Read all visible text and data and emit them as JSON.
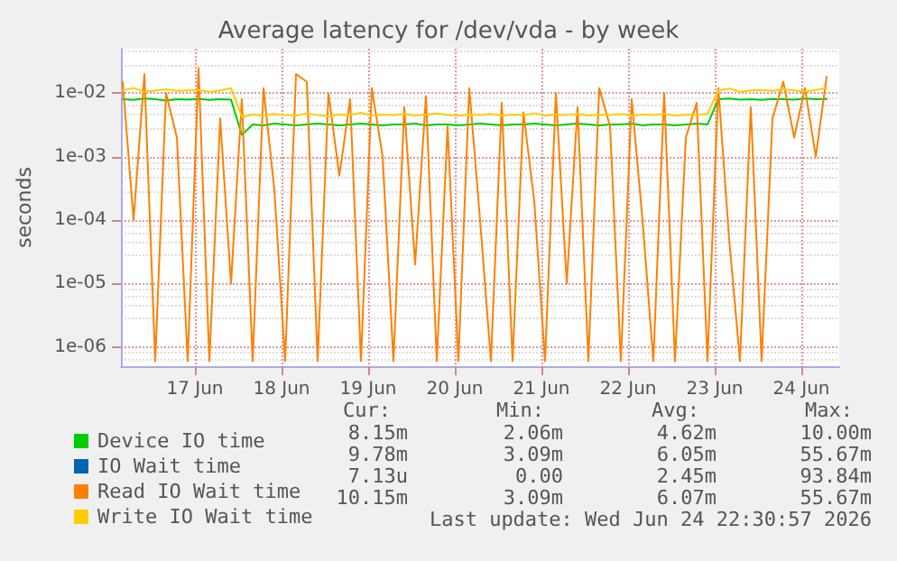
{
  "chart_data": {
    "type": "line",
    "title": "Average latency for /dev/vda - by week",
    "ylabel": "seconds",
    "log": true,
    "grid": true,
    "legend": "bottom",
    "marker": "none",
    "xlim": [
      "2026-06-16T15:30",
      "2026-06-24T22:30"
    ],
    "xticks": [
      {
        "value": "2026-06-17T12:00",
        "label": "17 Jun"
      },
      {
        "value": "2026-06-18T12:00",
        "label": "18 Jun"
      },
      {
        "value": "2026-06-19T12:00",
        "label": "19 Jun"
      },
      {
        "value": "2026-06-20T12:00",
        "label": "20 Jun"
      },
      {
        "value": "2026-06-21T12:00",
        "label": "21 Jun"
      },
      {
        "value": "2026-06-22T12:00",
        "label": "22 Jun"
      },
      {
        "value": "2026-06-23T12:00",
        "label": "23 Jun"
      },
      {
        "value": "2026-06-24T12:00",
        "label": "24 Jun"
      }
    ],
    "ylim": [
      5e-07,
      0.05
    ],
    "yticks": [
      {
        "value": 1e-06,
        "label": "1e-06"
      },
      {
        "value": 1e-05,
        "label": "1e-05"
      },
      {
        "value": 0.0001,
        "label": "1e-04"
      },
      {
        "value": 0.001,
        "label": "1e-03"
      },
      {
        "value": 0.01,
        "label": "1e-02"
      }
    ],
    "x": [
      "2026-06-16T16:00",
      "2026-06-16T19:00",
      "2026-06-16T22:00",
      "2026-06-17T01:00",
      "2026-06-17T04:00",
      "2026-06-17T07:00",
      "2026-06-17T10:00",
      "2026-06-17T13:00",
      "2026-06-17T16:00",
      "2026-06-17T19:00",
      "2026-06-17T22:00",
      "2026-06-18T01:00",
      "2026-06-18T04:00",
      "2026-06-18T07:00",
      "2026-06-18T10:00",
      "2026-06-18T13:00",
      "2026-06-18T16:00",
      "2026-06-18T19:00",
      "2026-06-18T22:00",
      "2026-06-19T01:00",
      "2026-06-19T04:00",
      "2026-06-19T07:00",
      "2026-06-19T10:00",
      "2026-06-19T13:00",
      "2026-06-19T16:00",
      "2026-06-19T19:00",
      "2026-06-19T22:00",
      "2026-06-20T01:00",
      "2026-06-20T04:00",
      "2026-06-20T07:00",
      "2026-06-20T10:00",
      "2026-06-20T13:00",
      "2026-06-20T16:00",
      "2026-06-20T19:00",
      "2026-06-20T22:00",
      "2026-06-21T01:00",
      "2026-06-21T04:00",
      "2026-06-21T07:00",
      "2026-06-21T10:00",
      "2026-06-21T13:00",
      "2026-06-21T16:00",
      "2026-06-21T19:00",
      "2026-06-21T22:00",
      "2026-06-22T01:00",
      "2026-06-22T04:00",
      "2026-06-22T07:00",
      "2026-06-22T10:00",
      "2026-06-22T13:00",
      "2026-06-22T16:00",
      "2026-06-22T19:00",
      "2026-06-22T22:00",
      "2026-06-23T01:00",
      "2026-06-23T04:00",
      "2026-06-23T07:00",
      "2026-06-23T10:00",
      "2026-06-23T13:00",
      "2026-06-23T16:00",
      "2026-06-23T19:00",
      "2026-06-23T22:00",
      "2026-06-24T01:00",
      "2026-06-24T04:00",
      "2026-06-24T07:00",
      "2026-06-24T10:00",
      "2026-06-24T13:00",
      "2026-06-24T16:00",
      "2026-06-24T19:00"
    ],
    "series": [
      {
        "name": "Device IO time",
        "color": "#00cc00",
        "values": [
          0.008,
          0.0078,
          0.0082,
          0.008,
          0.0076,
          0.008,
          0.0079,
          0.0081,
          0.0078,
          0.008,
          0.0079,
          0.0022,
          0.0032,
          0.0031,
          0.0033,
          0.0032,
          0.0031,
          0.0032,
          0.0033,
          0.0032,
          0.0031,
          0.0032,
          0.0033,
          0.0032,
          0.0031,
          0.0032,
          0.0032,
          0.0033,
          0.0031,
          0.0032,
          0.0032,
          0.0031,
          0.0032,
          0.0033,
          0.0032,
          0.0031,
          0.0032,
          0.0032,
          0.0033,
          0.0032,
          0.0031,
          0.0032,
          0.0033,
          0.0032,
          0.0031,
          0.0032,
          0.0032,
          0.0033,
          0.0031,
          0.0032,
          0.0032,
          0.0031,
          0.0032,
          0.0033,
          0.0032,
          0.008,
          0.0082,
          0.0079,
          0.008,
          0.0078,
          0.0081,
          0.008,
          0.0079,
          0.0082,
          0.008,
          0.0081
        ]
      },
      {
        "name": "IO Wait time",
        "color": "#0066b3",
        "values": [
          null,
          null,
          null,
          null,
          null,
          null,
          null,
          null,
          null,
          null,
          null,
          null,
          null,
          null,
          null,
          null,
          null,
          null,
          null,
          null,
          null,
          null,
          null,
          null,
          null,
          null,
          null,
          null,
          null,
          null,
          null,
          null,
          null,
          null,
          null,
          null,
          null,
          null,
          null,
          null,
          null,
          null,
          null,
          null,
          null,
          null,
          null,
          null,
          null,
          null,
          null,
          null,
          null,
          null,
          null,
          null,
          null,
          null,
          null,
          null,
          null,
          null,
          null,
          null,
          null,
          null
        ]
      },
      {
        "name": "Read IO Wait time",
        "color": "#ff8000",
        "values": [
          0.015,
          0.0001,
          0.02,
          6e-07,
          0.01,
          0.002,
          6e-07,
          0.025,
          6e-07,
          0.004,
          1e-05,
          0.008,
          6e-07,
          0.012,
          0.0003,
          6e-07,
          0.02,
          0.015,
          6e-07,
          0.01,
          0.0005,
          0.008,
          6e-07,
          0.012,
          0.001,
          6e-07,
          0.006,
          2e-05,
          0.009,
          6e-07,
          0.003,
          6e-07,
          0.012,
          0.0001,
          6e-07,
          0.007,
          6e-07,
          0.005,
          0.0002,
          6e-07,
          0.01,
          1e-05,
          0.006,
          6e-07,
          0.012,
          0.003,
          6e-07,
          0.008,
          0.0001,
          6e-07,
          0.01,
          6e-07,
          0.002,
          0.007,
          6e-07,
          0.012,
          5e-05,
          6e-07,
          0.006,
          6e-07,
          0.004,
          0.015,
          0.002,
          0.012,
          0.001,
          0.018
        ]
      },
      {
        "name": "Write IO Wait time",
        "color": "#ffcc00",
        "values": [
          0.011,
          0.012,
          0.0105,
          0.011,
          0.0115,
          0.0108,
          0.011,
          0.0112,
          0.0105,
          0.011,
          0.012,
          0.0042,
          0.0046,
          0.0044,
          0.0047,
          0.0045,
          0.0044,
          0.0048,
          0.0045,
          0.0043,
          0.0046,
          0.0045,
          0.0049,
          0.0044,
          0.0046,
          0.0045,
          0.0047,
          0.0044,
          0.0046,
          0.0048,
          0.0045,
          0.0044,
          0.0046,
          0.0045,
          0.0047,
          0.0044,
          0.0046,
          0.0045,
          0.0048,
          0.0044,
          0.0046,
          0.0045,
          0.0047,
          0.0044,
          0.0046,
          0.0045,
          0.0047,
          0.0044,
          0.0046,
          0.0045,
          0.0047,
          0.0044,
          0.0046,
          0.0045,
          0.0047,
          0.011,
          0.0118,
          0.0105,
          0.011,
          0.0112,
          0.0108,
          0.0115,
          0.011,
          0.0106,
          0.0112,
          0.012
        ]
      }
    ],
    "annotations": [
      "Cur:",
      "Min:",
      "Avg:",
      "Max:",
      "8.15m",
      "2.06m",
      "4.62m",
      "10.00m",
      "9.78m",
      "3.09m",
      "6.05m",
      "55.67m",
      "7.13u",
      "0.00",
      "2.45m",
      "93.84m",
      "10.15m",
      "3.09m",
      "6.07m",
      "55.67m",
      "Last update: Wed Jun 24 22:30:57 2026"
    ]
  }
}
